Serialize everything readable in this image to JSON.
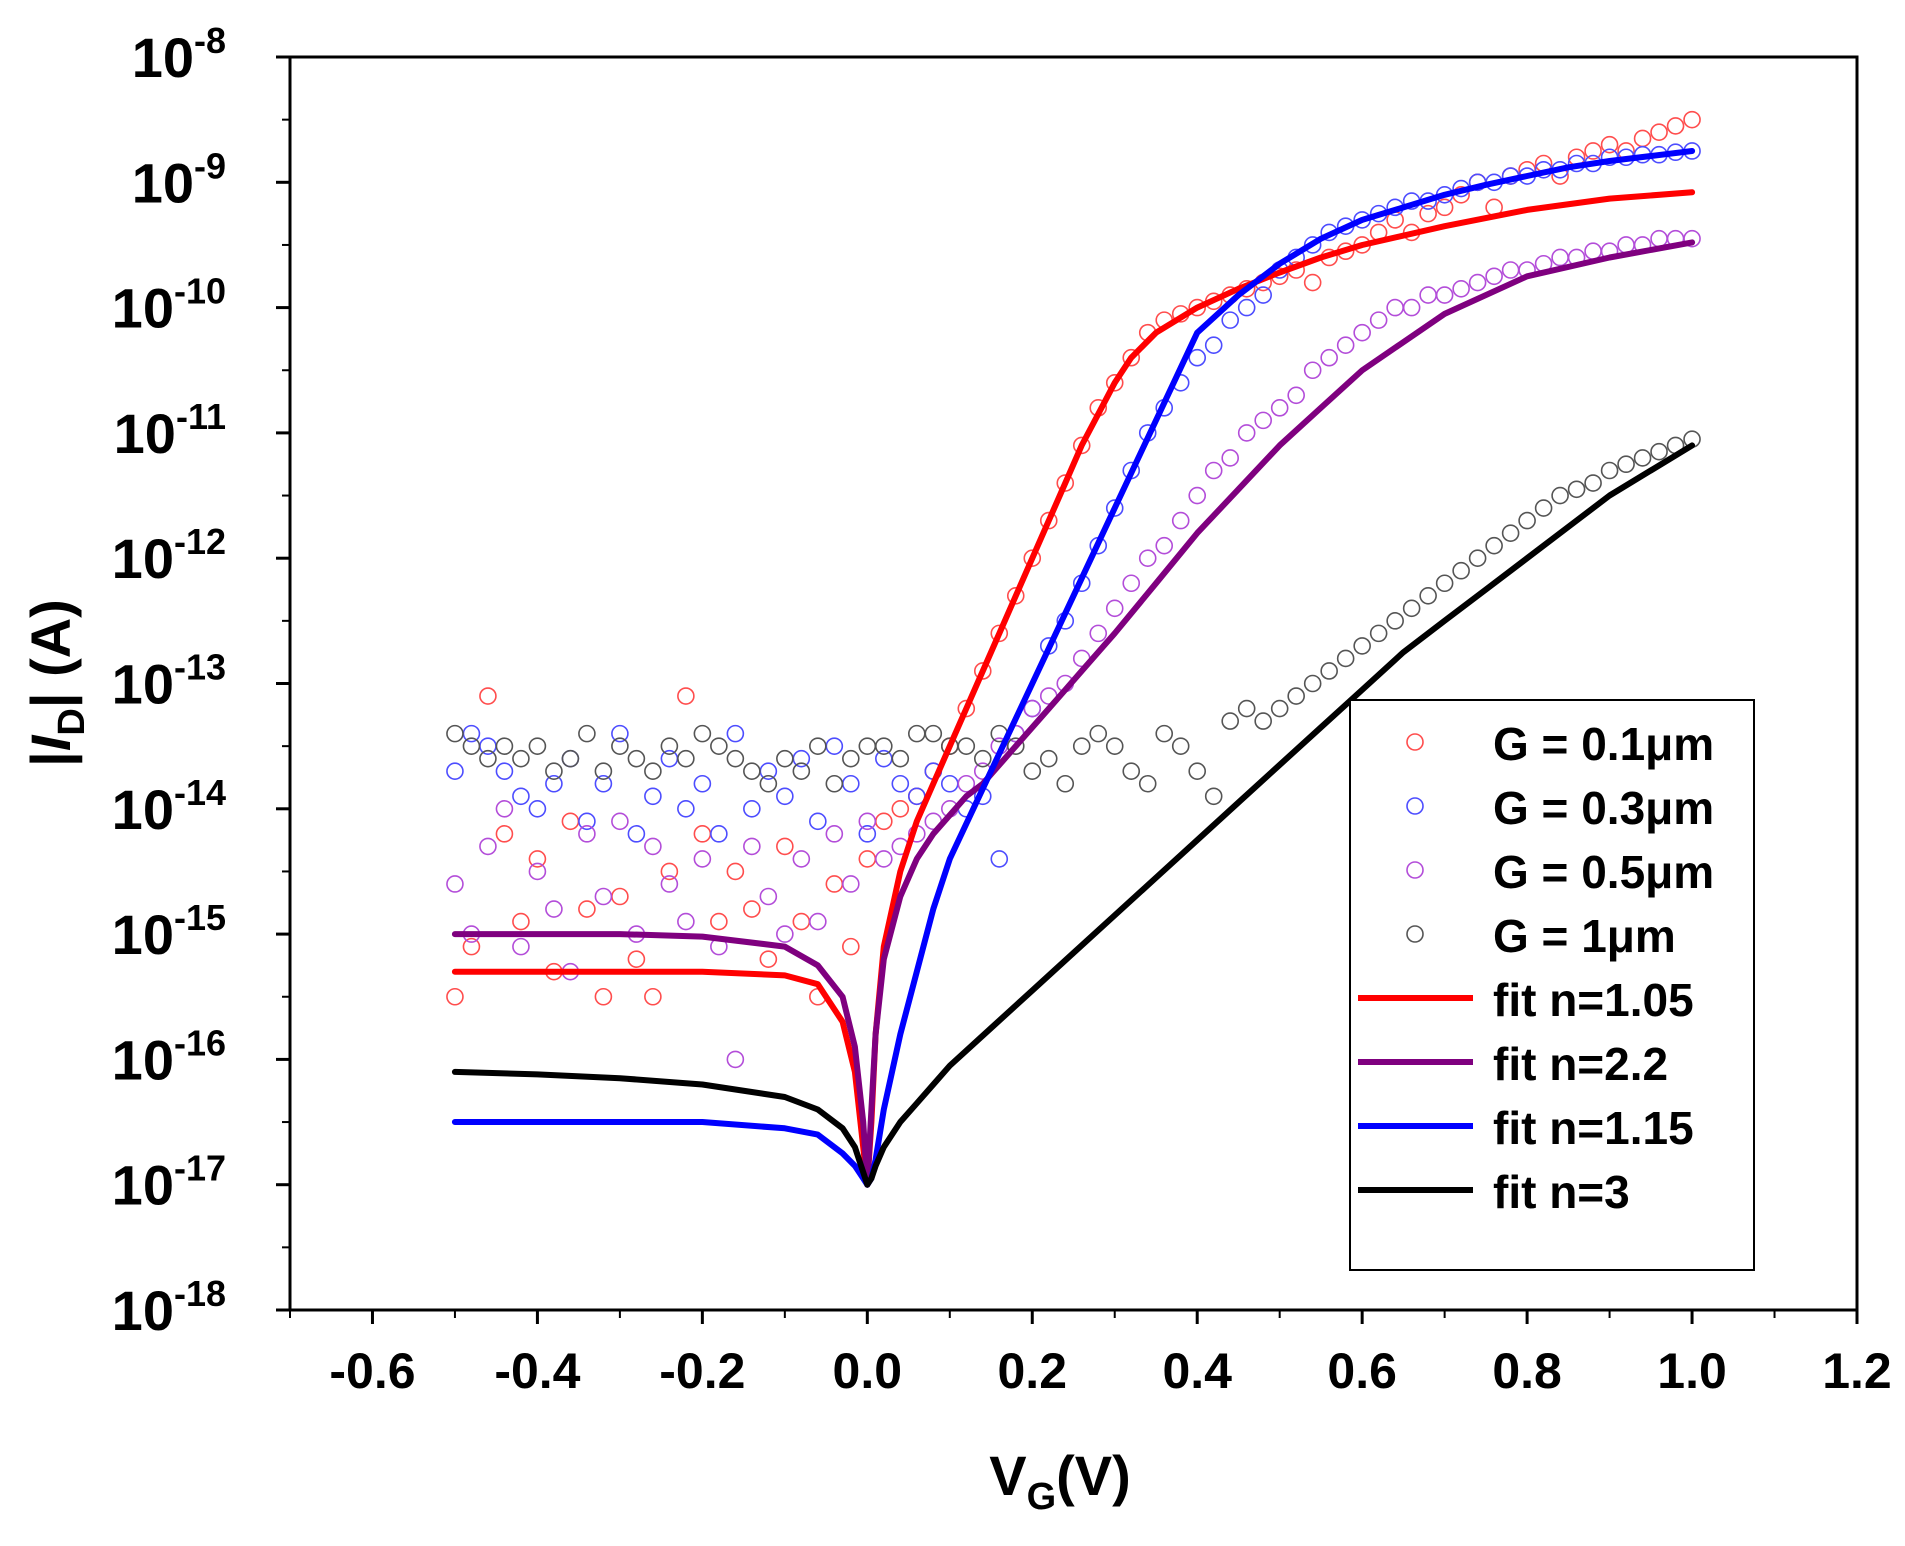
{
  "chart_data": {
    "type": "scatter",
    "title": "",
    "xlabel": {
      "main": "V",
      "sub": "G",
      "rest": "(V)"
    },
    "ylabel": {
      "open": "|",
      "italic": "I",
      "sub": "D",
      "close": "| (A)"
    },
    "xlim": [
      -0.7,
      1.2
    ],
    "ylim_log10": [
      -18,
      -8
    ],
    "x_ticks": [
      -0.6,
      -0.4,
      -0.2,
      0.0,
      0.2,
      0.4,
      0.6,
      0.8,
      1.0,
      1.2
    ],
    "x_tick_labels": [
      "-0.6",
      "-0.4",
      "-0.2",
      "0.0",
      "0.2",
      "0.4",
      "0.6",
      "0.8",
      "1.0",
      "1.2"
    ],
    "y_ticks": [
      {
        "exp": -18,
        "base": "10",
        "sup": "-18"
      },
      {
        "exp": -17,
        "base": "10",
        "sup": "-17"
      },
      {
        "exp": -16,
        "base": "10",
        "sup": "-16"
      },
      {
        "exp": -15,
        "base": "10",
        "sup": "-15"
      },
      {
        "exp": -14,
        "base": "10",
        "sup": "-14"
      },
      {
        "exp": -13,
        "base": "10",
        "sup": "-13"
      },
      {
        "exp": -12,
        "base": "10",
        "sup": "-12"
      },
      {
        "exp": -11,
        "base": "10",
        "sup": "-11"
      },
      {
        "exp": -10,
        "base": "10",
        "sup": "-10"
      },
      {
        "exp": -9,
        "base": "10",
        "sup": "-9"
      },
      {
        "exp": -8,
        "base": "10",
        "sup": "-8"
      }
    ],
    "legend_position": "bottom-right",
    "scatter_series": [
      {
        "name": "G = 0.1μm",
        "color": "#ff4d4d",
        "log10_x": [
          -0.5,
          -0.48,
          -0.46,
          -0.44,
          -0.42,
          -0.4,
          -0.38,
          -0.36,
          -0.34,
          -0.32,
          -0.3,
          -0.28,
          -0.26,
          -0.24,
          -0.22,
          -0.2,
          -0.18,
          -0.16,
          -0.14,
          -0.12,
          -0.1,
          -0.08,
          -0.06,
          -0.04,
          -0.02,
          0.0,
          0.02,
          0.04,
          0.06,
          0.08,
          0.1,
          0.12,
          0.14,
          0.16,
          0.18,
          0.2,
          0.22,
          0.24,
          0.26,
          0.28,
          0.3,
          0.32,
          0.34,
          0.36,
          0.38,
          0.4,
          0.42,
          0.44,
          0.46,
          0.48,
          0.5,
          0.52,
          0.54,
          0.56,
          0.58,
          0.6,
          0.62,
          0.64,
          0.66,
          0.68,
          0.7,
          0.72,
          0.74,
          0.76,
          0.78,
          0.8,
          0.82,
          0.84,
          0.86,
          0.88,
          0.9,
          0.92,
          0.94,
          0.96,
          0.98,
          1.0
        ],
        "log10_y": [
          -15.5,
          -15.1,
          -13.1,
          -14.2,
          -14.9,
          -14.4,
          -15.3,
          -14.1,
          -14.8,
          -15.5,
          -14.7,
          -15.2,
          -15.5,
          -14.5,
          -13.1,
          -14.2,
          -14.9,
          -14.5,
          -14.8,
          -15.2,
          -14.3,
          -14.9,
          -15.5,
          -14.6,
          -15.1,
          -14.4,
          -14.1,
          -14.0,
          -13.9,
          -13.7,
          -13.5,
          -13.2,
          -12.9,
          -12.6,
          -12.3,
          -12.0,
          -11.7,
          -11.4,
          -11.1,
          -10.8,
          -10.6,
          -10.4,
          -10.2,
          -10.1,
          -10.05,
          -10.0,
          -9.95,
          -9.9,
          -9.85,
          -9.8,
          -9.75,
          -9.7,
          -9.8,
          -9.6,
          -9.55,
          -9.5,
          -9.4,
          -9.3,
          -9.4,
          -9.25,
          -9.2,
          -9.1,
          -9.0,
          -9.2,
          -8.95,
          -8.9,
          -8.85,
          -8.95,
          -8.8,
          -8.75,
          -8.7,
          -8.75,
          -8.65,
          -8.6,
          -8.55,
          -8.5
        ]
      },
      {
        "name": "G = 0.3μm",
        "color": "#4d4dff",
        "log10_x": [
          -0.5,
          -0.48,
          -0.46,
          -0.44,
          -0.42,
          -0.4,
          -0.38,
          -0.36,
          -0.34,
          -0.32,
          -0.3,
          -0.28,
          -0.26,
          -0.24,
          -0.22,
          -0.2,
          -0.18,
          -0.16,
          -0.14,
          -0.12,
          -0.1,
          -0.08,
          -0.06,
          -0.04,
          -0.02,
          0.0,
          0.02,
          0.04,
          0.06,
          0.08,
          0.1,
          0.12,
          0.14,
          0.16,
          0.18,
          0.2,
          0.22,
          0.24,
          0.26,
          0.28,
          0.3,
          0.32,
          0.34,
          0.36,
          0.38,
          0.4,
          0.42,
          0.44,
          0.46,
          0.48,
          0.5,
          0.52,
          0.54,
          0.56,
          0.58,
          0.6,
          0.62,
          0.64,
          0.66,
          0.68,
          0.7,
          0.72,
          0.74,
          0.76,
          0.78,
          0.8,
          0.82,
          0.84,
          0.86,
          0.88,
          0.9,
          0.92,
          0.94,
          0.96,
          0.98,
          1.0
        ],
        "log10_y": [
          -13.7,
          -13.4,
          -13.5,
          -13.7,
          -13.9,
          -14.0,
          -13.8,
          -13.6,
          -14.1,
          -13.8,
          -13.4,
          -14.2,
          -13.9,
          -13.6,
          -14.0,
          -13.8,
          -14.2,
          -13.4,
          -14.0,
          -13.7,
          -13.9,
          -13.6,
          -14.1,
          -13.5,
          -13.8,
          -14.2,
          -13.6,
          -13.8,
          -13.9,
          -13.7,
          -13.8,
          -14.0,
          -13.9,
          -14.4,
          -13.4,
          -13.2,
          -12.7,
          -12.5,
          -12.2,
          -11.9,
          -11.6,
          -11.3,
          -11.0,
          -10.8,
          -10.6,
          -10.4,
          -10.3,
          -10.1,
          -10.0,
          -9.9,
          -9.7,
          -9.6,
          -9.5,
          -9.4,
          -9.35,
          -9.3,
          -9.25,
          -9.2,
          -9.15,
          -9.15,
          -9.1,
          -9.05,
          -9.0,
          -9.0,
          -8.95,
          -8.95,
          -8.9,
          -8.9,
          -8.85,
          -8.85,
          -8.8,
          -8.8,
          -8.78,
          -8.78,
          -8.76,
          -8.75
        ]
      },
      {
        "name": "G = 0.5μm",
        "color": "#b34dd9",
        "log10_x": [
          -0.5,
          -0.48,
          -0.46,
          -0.44,
          -0.42,
          -0.4,
          -0.38,
          -0.36,
          -0.34,
          -0.32,
          -0.3,
          -0.28,
          -0.26,
          -0.24,
          -0.22,
          -0.2,
          -0.18,
          -0.16,
          -0.14,
          -0.12,
          -0.1,
          -0.08,
          -0.06,
          -0.04,
          -0.02,
          0.0,
          0.02,
          0.04,
          0.06,
          0.08,
          0.1,
          0.12,
          0.14,
          0.16,
          0.18,
          0.2,
          0.22,
          0.24,
          0.26,
          0.28,
          0.3,
          0.32,
          0.34,
          0.36,
          0.38,
          0.4,
          0.42,
          0.44,
          0.46,
          0.48,
          0.5,
          0.52,
          0.54,
          0.56,
          0.58,
          0.6,
          0.62,
          0.64,
          0.66,
          0.68,
          0.7,
          0.72,
          0.74,
          0.76,
          0.78,
          0.8,
          0.82,
          0.84,
          0.86,
          0.88,
          0.9,
          0.92,
          0.94,
          0.96,
          0.98,
          1.0
        ],
        "log10_y": [
          -14.6,
          -15.0,
          -14.3,
          -14.0,
          -15.1,
          -14.5,
          -14.8,
          -15.3,
          -14.2,
          -14.7,
          -14.1,
          -15.0,
          -14.3,
          -14.6,
          -14.9,
          -14.4,
          -15.1,
          -16.0,
          -14.3,
          -14.7,
          -15.0,
          -14.4,
          -14.9,
          -14.2,
          -14.6,
          -14.1,
          -14.4,
          -14.3,
          -14.2,
          -14.1,
          -14.0,
          -13.8,
          -13.7,
          -13.5,
          -13.4,
          -13.2,
          -13.1,
          -13.0,
          -12.8,
          -12.6,
          -12.4,
          -12.2,
          -12.0,
          -11.9,
          -11.7,
          -11.5,
          -11.3,
          -11.2,
          -11.0,
          -10.9,
          -10.8,
          -10.7,
          -10.5,
          -10.4,
          -10.3,
          -10.2,
          -10.1,
          -10.0,
          -10.0,
          -9.9,
          -9.9,
          -9.85,
          -9.8,
          -9.75,
          -9.7,
          -9.7,
          -9.65,
          -9.6,
          -9.6,
          -9.55,
          -9.55,
          -9.5,
          -9.5,
          -9.45,
          -9.45,
          -9.45
        ]
      },
      {
        "name": "G = 1μm",
        "color": "#555555",
        "log10_x": [
          -0.5,
          -0.48,
          -0.46,
          -0.44,
          -0.42,
          -0.4,
          -0.38,
          -0.36,
          -0.34,
          -0.32,
          -0.3,
          -0.28,
          -0.26,
          -0.24,
          -0.22,
          -0.2,
          -0.18,
          -0.16,
          -0.14,
          -0.12,
          -0.1,
          -0.08,
          -0.06,
          -0.04,
          -0.02,
          0.0,
          0.02,
          0.04,
          0.06,
          0.08,
          0.1,
          0.12,
          0.14,
          0.16,
          0.18,
          0.2,
          0.22,
          0.24,
          0.26,
          0.28,
          0.3,
          0.32,
          0.34,
          0.36,
          0.38,
          0.4,
          0.42,
          0.44,
          0.46,
          0.48,
          0.5,
          0.52,
          0.54,
          0.56,
          0.58,
          0.6,
          0.62,
          0.64,
          0.66,
          0.68,
          0.7,
          0.72,
          0.74,
          0.76,
          0.78,
          0.8,
          0.82,
          0.84,
          0.86,
          0.88,
          0.9,
          0.92,
          0.94,
          0.96,
          0.98,
          1.0
        ],
        "log10_y": [
          -13.4,
          -13.5,
          -13.6,
          -13.5,
          -13.6,
          -13.5,
          -13.7,
          -13.6,
          -13.4,
          -13.7,
          -13.5,
          -13.6,
          -13.7,
          -13.5,
          -13.6,
          -13.4,
          -13.5,
          -13.6,
          -13.7,
          -13.8,
          -13.6,
          -13.7,
          -13.5,
          -13.8,
          -13.6,
          -13.5,
          -13.5,
          -13.6,
          -13.4,
          -13.4,
          -13.5,
          -13.5,
          -13.6,
          -13.4,
          -13.5,
          -13.7,
          -13.6,
          -13.8,
          -13.5,
          -13.4,
          -13.5,
          -13.7,
          -13.8,
          -13.4,
          -13.5,
          -13.7,
          -13.9,
          -13.3,
          -13.2,
          -13.3,
          -13.2,
          -13.1,
          -13.0,
          -12.9,
          -12.8,
          -12.7,
          -12.6,
          -12.5,
          -12.4,
          -12.3,
          -12.2,
          -12.1,
          -12.0,
          -11.9,
          -11.8,
          -11.7,
          -11.6,
          -11.5,
          -11.45,
          -11.4,
          -11.3,
          -11.25,
          -11.2,
          -11.15,
          -11.1,
          -11.05
        ]
      }
    ],
    "fit_series": [
      {
        "name": "fit n=1.05",
        "color": "#ff0000",
        "log10_x": [
          -0.5,
          -0.4,
          -0.3,
          -0.2,
          -0.1,
          -0.06,
          -0.03,
          -0.015,
          -0.005,
          0.0,
          0.005,
          0.01,
          0.02,
          0.04,
          0.06,
          0.08,
          0.1,
          0.12,
          0.14,
          0.16,
          0.18,
          0.2,
          0.22,
          0.24,
          0.26,
          0.28,
          0.3,
          0.32,
          0.35,
          0.4,
          0.45,
          0.5,
          0.55,
          0.6,
          0.7,
          0.8,
          0.9,
          1.0
        ],
        "log10_y": [
          -15.3,
          -15.3,
          -15.3,
          -15.3,
          -15.33,
          -15.4,
          -15.7,
          -16.1,
          -16.7,
          -17.0,
          -16.5,
          -15.8,
          -15.1,
          -14.5,
          -14.1,
          -13.8,
          -13.5,
          -13.2,
          -12.9,
          -12.6,
          -12.3,
          -12.0,
          -11.7,
          -11.4,
          -11.1,
          -10.85,
          -10.6,
          -10.4,
          -10.2,
          -10.0,
          -9.85,
          -9.72,
          -9.6,
          -9.5,
          -9.35,
          -9.22,
          -9.13,
          -9.08
        ]
      },
      {
        "name": "fit n=2.2",
        "color": "#7f007f",
        "log10_x": [
          -0.5,
          -0.4,
          -0.3,
          -0.2,
          -0.1,
          -0.06,
          -0.03,
          -0.015,
          -0.005,
          0.0,
          0.005,
          0.01,
          0.02,
          0.04,
          0.06,
          0.08,
          0.1,
          0.12,
          0.14,
          0.16,
          0.18,
          0.2,
          0.22,
          0.24,
          0.26,
          0.28,
          0.3,
          0.35,
          0.4,
          0.45,
          0.5,
          0.55,
          0.6,
          0.7,
          0.8,
          0.9,
          1.0
        ],
        "log10_y": [
          -15.0,
          -15.0,
          -15.0,
          -15.02,
          -15.1,
          -15.25,
          -15.5,
          -15.9,
          -16.5,
          -17.0,
          -16.4,
          -15.8,
          -15.2,
          -14.7,
          -14.4,
          -14.2,
          -14.05,
          -13.9,
          -13.8,
          -13.65,
          -13.5,
          -13.35,
          -13.2,
          -13.05,
          -12.9,
          -12.75,
          -12.6,
          -12.2,
          -11.8,
          -11.45,
          -11.1,
          -10.8,
          -10.5,
          -10.05,
          -9.75,
          -9.6,
          -9.48
        ]
      },
      {
        "name": "fit n=1.15",
        "color": "#0000ff",
        "log10_x": [
          -0.5,
          -0.4,
          -0.3,
          -0.2,
          -0.1,
          -0.06,
          -0.03,
          -0.015,
          -0.005,
          0.0,
          0.005,
          0.01,
          0.02,
          0.04,
          0.06,
          0.08,
          0.1,
          0.15,
          0.2,
          0.25,
          0.3,
          0.35,
          0.4,
          0.45,
          0.5,
          0.55,
          0.6,
          0.65,
          0.7,
          0.75,
          0.8,
          0.85,
          0.9,
          0.95,
          1.0
        ],
        "log10_y": [
          -16.5,
          -16.5,
          -16.5,
          -16.5,
          -16.55,
          -16.6,
          -16.75,
          -16.85,
          -16.95,
          -17.0,
          -16.95,
          -16.8,
          -16.4,
          -15.8,
          -15.3,
          -14.8,
          -14.4,
          -13.7,
          -13.0,
          -12.3,
          -11.6,
          -10.9,
          -10.2,
          -9.9,
          -9.65,
          -9.45,
          -9.3,
          -9.2,
          -9.1,
          -9.02,
          -8.95,
          -8.88,
          -8.83,
          -8.79,
          -8.75
        ]
      },
      {
        "name": "fit n=3",
        "color": "#000000",
        "log10_x": [
          -0.5,
          -0.4,
          -0.3,
          -0.2,
          -0.1,
          -0.06,
          -0.03,
          -0.015,
          -0.005,
          0.0,
          0.005,
          0.01,
          0.02,
          0.04,
          0.06,
          0.08,
          0.1,
          0.15,
          0.2,
          0.25,
          0.3,
          0.35,
          0.4,
          0.45,
          0.5,
          0.55,
          0.6,
          0.65,
          0.7,
          0.75,
          0.8,
          0.85,
          0.9,
          0.95,
          1.0
        ],
        "log10_y": [
          -16.1,
          -16.12,
          -16.15,
          -16.2,
          -16.3,
          -16.4,
          -16.55,
          -16.7,
          -16.9,
          -17.0,
          -16.95,
          -16.85,
          -16.7,
          -16.5,
          -16.35,
          -16.2,
          -16.05,
          -15.75,
          -15.45,
          -15.15,
          -14.85,
          -14.55,
          -14.25,
          -13.95,
          -13.65,
          -13.35,
          -13.05,
          -12.75,
          -12.5,
          -12.25,
          -12.0,
          -11.75,
          -11.5,
          -11.3,
          -11.1
        ]
      }
    ]
  }
}
